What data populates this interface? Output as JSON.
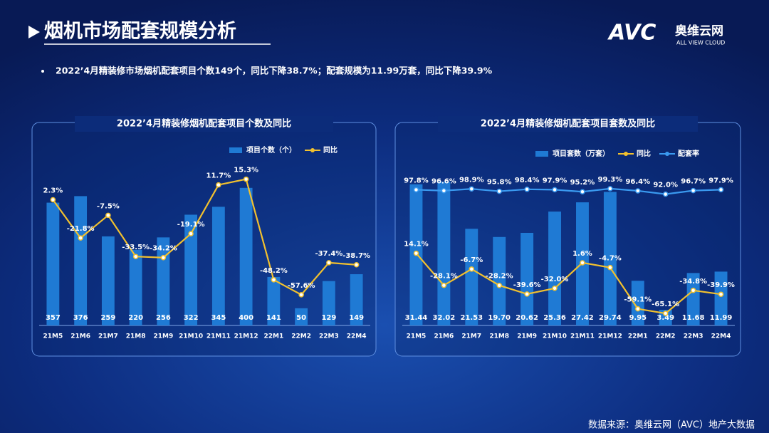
{
  "header": {
    "title": "烟机市场配套规模分析",
    "bullet": "2022’4月精装修市场烟机配套项目个数149个，同比下降38.7%；配套规模为11.99万套，同比下降39.9%"
  },
  "logo": {
    "mark": "AVC",
    "name": "奥维云网",
    "tagline": "ALL VIEW CLOUD"
  },
  "source": "数据来源：奥维云网（AVC）地产大数据",
  "chart_data": [
    {
      "type": "combo",
      "title": "2022’4月精装修烟机配套项目个数及同比",
      "categories": [
        "21M5",
        "21M6",
        "21M7",
        "21M8",
        "21M9",
        "21M10",
        "21M11",
        "21M12",
        "22M1",
        "22M2",
        "22M3",
        "22M4"
      ],
      "ylim": [
        0,
        470
      ],
      "y2lim": [
        -77,
        25
      ],
      "series": [
        {
          "name": "项目个数（个）",
          "type": "bar",
          "color": "#1f7ad4",
          "values": [
            357,
            376,
            259,
            220,
            256,
            322,
            345,
            400,
            141,
            50,
            129,
            149
          ]
        },
        {
          "name": "同比",
          "type": "line",
          "axis": "y2",
          "color": "#f2c12e",
          "values": [
            2.3,
            -21.8,
            -7.5,
            -33.5,
            -34.2,
            -19.1,
            11.7,
            15.3,
            -48.2,
            -57.6,
            -37.4,
            -38.7
          ],
          "value_labels": [
            "2.3%",
            "-21.8%",
            "-7.5%",
            "-33.5%",
            "-34.2%",
            "-19.1%",
            "11.7%",
            "15.3%",
            "-48.2%",
            "-57.6%",
            "-37.4%",
            "-38.7%"
          ]
        }
      ]
    },
    {
      "type": "combo",
      "title": "2022’4月精装修烟机配套项目套数及同比",
      "categories": [
        "21M5",
        "21M6",
        "21M7",
        "21M8",
        "21M9",
        "21M10",
        "21M11",
        "21M12",
        "22M1",
        "22M2",
        "22M3",
        "22M4"
      ],
      "ylim": [
        0,
        36
      ],
      "y2lim": [
        -81,
        132
      ],
      "series": [
        {
          "name": "项目套数（万套）",
          "type": "bar",
          "color": "#1f7ad4",
          "values": [
            31.44,
            32.02,
            21.53,
            19.7,
            20.62,
            25.36,
            27.42,
            29.74,
            9.95,
            3.49,
            11.68,
            11.99
          ],
          "value_labels": [
            "31.44",
            "32.02",
            "21.53",
            "19.70",
            "20.62",
            "25.36",
            "27.42",
            "29.74",
            "9.95",
            "3.49",
            "11.68",
            "11.99"
          ]
        },
        {
          "name": "同比",
          "type": "line",
          "axis": "y2",
          "color": "#f2c12e",
          "values": [
            14.1,
            -28.1,
            -6.7,
            -28.2,
            -39.6,
            -32.0,
            1.6,
            -4.7,
            -59.1,
            -65.1,
            -34.8,
            -39.9
          ],
          "value_labels": [
            "14.1%",
            "-28.1%",
            "-6.7%",
            "-28.2%",
            "-39.6%",
            "-32.0%",
            "1.6%",
            "-4.7%",
            "-59.1%",
            "-65.1%",
            "-34.8%",
            "-39.9%"
          ]
        },
        {
          "name": "配套率",
          "type": "line",
          "axis": "y2",
          "color": "#3a9af0",
          "values": [
            97.8,
            96.6,
            98.9,
            95.8,
            98.4,
            97.9,
            95.2,
            99.3,
            96.4,
            92.0,
            96.7,
            97.9
          ],
          "value_labels": [
            "97.8%",
            "96.6%",
            "98.9%",
            "95.8%",
            "98.4%",
            "97.9%",
            "95.2%",
            "99.3%",
            "96.4%",
            "92.0%",
            "96.7%",
            "97.9%"
          ]
        }
      ]
    }
  ]
}
